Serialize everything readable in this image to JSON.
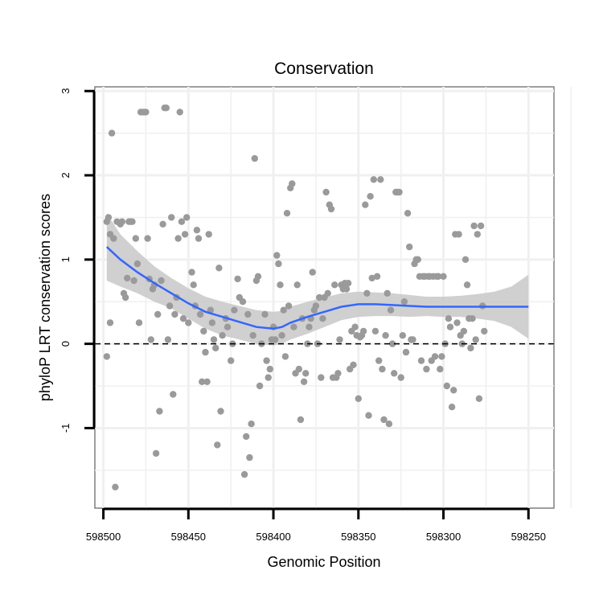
{
  "chart_data": {
    "type": "scatter",
    "title": "Conservation",
    "xlabel": "Genomic Position",
    "ylabel": "phyloP LRT conservation scores",
    "x_reversed": true,
    "xlim": [
      598505,
      598235
    ],
    "ylim": [
      -1.95,
      3.05
    ],
    "grid": true,
    "x_ticks": [
      598500,
      598450,
      598400,
      598350,
      598300,
      598250
    ],
    "x_tick_labels": [
      "598500",
      "598450",
      "598400",
      "598350",
      "598300",
      "598250"
    ],
    "y_ticks": [
      3,
      2,
      1,
      0,
      -1
    ],
    "y_tick_labels": [
      "3",
      "2",
      "1",
      "0",
      "-1"
    ],
    "reference_line": {
      "y": 0,
      "style": "dashed",
      "color": "#000000"
    },
    "colors": {
      "points": "#9a9a9a",
      "smooth": "#3366ff",
      "band": "#c8c8c8",
      "grid": "#f0f0f0",
      "border": "#7f7f7f"
    },
    "points": [
      [
        598498,
        1.45
      ],
      [
        598497,
        1.5
      ],
      [
        598496,
        1.3
      ],
      [
        598495,
        2.5
      ],
      [
        598494,
        1.25
      ],
      [
        598498,
        -0.15
      ],
      [
        598496,
        0.25
      ],
      [
        598493,
        -1.7
      ],
      [
        598492,
        1.45
      ],
      [
        598490,
        1.42
      ],
      [
        598489,
        1.45
      ],
      [
        598488,
        0.6
      ],
      [
        598487,
        0.55
      ],
      [
        598486,
        0.78
      ],
      [
        598485,
        1.45
      ],
      [
        598484,
        1.45
      ],
      [
        598483,
        1.45
      ],
      [
        598482,
        0.75
      ],
      [
        598481,
        1.25
      ],
      [
        598480,
        0.95
      ],
      [
        598479,
        0.25
      ],
      [
        598478,
        2.75
      ],
      [
        598477,
        2.75
      ],
      [
        598476,
        2.75
      ],
      [
        598475,
        2.75
      ],
      [
        598474,
        1.25
      ],
      [
        598473,
        0.77
      ],
      [
        598472,
        0.05
      ],
      [
        598471,
        0.65
      ],
      [
        598470,
        0.7
      ],
      [
        598469,
        -1.3
      ],
      [
        598468,
        0.35
      ],
      [
        598467,
        -0.8
      ],
      [
        598466,
        0.75
      ],
      [
        598465,
        1.42
      ],
      [
        598464,
        2.8
      ],
      [
        598463,
        2.8
      ],
      [
        598462,
        0.05
      ],
      [
        598461,
        0.45
      ],
      [
        598460,
        1.5
      ],
      [
        598459,
        -0.6
      ],
      [
        598458,
        0.35
      ],
      [
        598457,
        0.55
      ],
      [
        598456,
        1.25
      ],
      [
        598455,
        2.75
      ],
      [
        598454,
        1.45
      ],
      [
        598453,
        0.3
      ],
      [
        598452,
        1.3
      ],
      [
        598451,
        1.5
      ],
      [
        598450,
        0.25
      ],
      [
        598448,
        0.85
      ],
      [
        598447,
        0.7
      ],
      [
        598446,
        0.45
      ],
      [
        598445,
        1.35
      ],
      [
        598444,
        1.25
      ],
      [
        598443,
        0.35
      ],
      [
        598442,
        -0.45
      ],
      [
        598441,
        0.15
      ],
      [
        598440,
        -0.1
      ],
      [
        598439,
        -0.45
      ],
      [
        598438,
        1.3
      ],
      [
        598437,
        0.4
      ],
      [
        598436,
        0.25
      ],
      [
        598435,
        0.05
      ],
      [
        598434,
        -0.05
      ],
      [
        598433,
        -1.2
      ],
      [
        598432,
        0.9
      ],
      [
        598431,
        -0.8
      ],
      [
        598430,
        0.1
      ],
      [
        598428,
        0.3
      ],
      [
        598427,
        0.2
      ],
      [
        598425,
        -0.2
      ],
      [
        598424,
        0.0
      ],
      [
        598423,
        0.4
      ],
      [
        598421,
        0.77
      ],
      [
        598420,
        0.55
      ],
      [
        598418,
        0.5
      ],
      [
        598417,
        -1.55
      ],
      [
        598416,
        -1.1
      ],
      [
        598415,
        0.35
      ],
      [
        598414,
        -1.35
      ],
      [
        598413,
        -0.95
      ],
      [
        598412,
        0.1
      ],
      [
        598411,
        2.2
      ],
      [
        598410,
        0.75
      ],
      [
        598409,
        0.8
      ],
      [
        598408,
        -0.5
      ],
      [
        598407,
        0.0
      ],
      [
        598405,
        0.35
      ],
      [
        598404,
        -0.2
      ],
      [
        598403,
        -0.4
      ],
      [
        598402,
        -0.3
      ],
      [
        598401,
        0.05
      ],
      [
        598400,
        0.2
      ],
      [
        598399,
        0.05
      ],
      [
        598398,
        1.05
      ],
      [
        598397,
        0.95
      ],
      [
        598396,
        0.7
      ],
      [
        598395,
        0.1
      ],
      [
        598394,
        0.4
      ],
      [
        598393,
        -0.15
      ],
      [
        598392,
        1.55
      ],
      [
        598391,
        0.45
      ],
      [
        598390,
        1.85
      ],
      [
        598389,
        1.9
      ],
      [
        598388,
        0.2
      ],
      [
        598387,
        -0.35
      ],
      [
        598386,
        0.7
      ],
      [
        598385,
        -0.3
      ],
      [
        598384,
        -0.9
      ],
      [
        598383,
        0.3
      ],
      [
        598382,
        -0.45
      ],
      [
        598381,
        -0.35
      ],
      [
        598380,
        0.0
      ],
      [
        598379,
        0.2
      ],
      [
        598378,
        0.3
      ],
      [
        598377,
        0.85
      ],
      [
        598376,
        0.4
      ],
      [
        598375,
        0.45
      ],
      [
        598374,
        0.0
      ],
      [
        598373,
        0.55
      ],
      [
        598372,
        -0.4
      ],
      [
        598371,
        0.3
      ],
      [
        598370,
        0.55
      ],
      [
        598369,
        1.8
      ],
      [
        598368,
        0.6
      ],
      [
        598367,
        1.65
      ],
      [
        598366,
        1.6
      ],
      [
        598365,
        -0.4
      ],
      [
        598364,
        0.7
      ],
      [
        598363,
        -0.4
      ],
      [
        598362,
        -0.35
      ],
      [
        598361,
        0.05
      ],
      [
        598360,
        0.7
      ],
      [
        598359,
        0.65
      ],
      [
        598358,
        0.72
      ],
      [
        598357,
        0.65
      ],
      [
        598356,
        0.72
      ],
      [
        598355,
        -0.3
      ],
      [
        598354,
        0.15
      ],
      [
        598353,
        -0.25
      ],
      [
        598352,
        0.2
      ],
      [
        598351,
        0.1
      ],
      [
        598350,
        -0.65
      ],
      [
        598349,
        0.08
      ],
      [
        598348,
        0.1
      ],
      [
        598347,
        0.15
      ],
      [
        598346,
        1.65
      ],
      [
        598345,
        0.6
      ],
      [
        598344,
        -0.85
      ],
      [
        598343,
        1.75
      ],
      [
        598342,
        0.78
      ],
      [
        598341,
        1.95
      ],
      [
        598340,
        0.15
      ],
      [
        598339,
        0.8
      ],
      [
        598338,
        -0.2
      ],
      [
        598337,
        1.95
      ],
      [
        598336,
        -0.3
      ],
      [
        598335,
        -0.9
      ],
      [
        598334,
        0.1
      ],
      [
        598333,
        0.6
      ],
      [
        598332,
        -0.95
      ],
      [
        598331,
        0.4
      ],
      [
        598330,
        0.0
      ],
      [
        598329,
        -0.35
      ],
      [
        598328,
        1.8
      ],
      [
        598327,
        1.8
      ],
      [
        598326,
        1.8
      ],
      [
        598325,
        -0.4
      ],
      [
        598324,
        0.1
      ],
      [
        598323,
        0.5
      ],
      [
        598322,
        -0.1
      ],
      [
        598321,
        1.55
      ],
      [
        598320,
        1.15
      ],
      [
        598319,
        0.05
      ],
      [
        598318,
        0.05
      ],
      [
        598317,
        0.95
      ],
      [
        598316,
        1.0
      ],
      [
        598315,
        1.0
      ],
      [
        598314,
        0.8
      ],
      [
        598313,
        -0.2
      ],
      [
        598312,
        0.8
      ],
      [
        598311,
        0.8
      ],
      [
        598310,
        -0.3
      ],
      [
        598309,
        0.8
      ],
      [
        598308,
        0.8
      ],
      [
        598307,
        -0.2
      ],
      [
        598306,
        0.8
      ],
      [
        598305,
        -0.15
      ],
      [
        598304,
        0.8
      ],
      [
        598303,
        0.8
      ],
      [
        598302,
        -0.3
      ],
      [
        598301,
        -0.15
      ],
      [
        598300,
        0.8
      ],
      [
        598299,
        0.0
      ],
      [
        598298,
        -0.5
      ],
      [
        598297,
        0.3
      ],
      [
        598296,
        0.2
      ],
      [
        598295,
        -0.75
      ],
      [
        598294,
        -0.55
      ],
      [
        598293,
        1.3
      ],
      [
        598292,
        0.25
      ],
      [
        598291,
        1.3
      ],
      [
        598290,
        0.1
      ],
      [
        598289,
        0.0
      ],
      [
        598288,
        0.15
      ],
      [
        598287,
        1.0
      ],
      [
        598286,
        0.7
      ],
      [
        598285,
        0.3
      ],
      [
        598284,
        -0.05
      ],
      [
        598283,
        0.3
      ],
      [
        598282,
        1.4
      ],
      [
        598281,
        0.05
      ],
      [
        598280,
        1.3
      ],
      [
        598279,
        -0.65
      ],
      [
        598278,
        1.4
      ],
      [
        598277,
        0.45
      ],
      [
        598276,
        0.15
      ]
    ],
    "smooth_line": {
      "x": [
        598498,
        598490,
        598480,
        598470,
        598460,
        598450,
        598440,
        598430,
        598420,
        598410,
        598400,
        598395,
        598390,
        598380,
        598370,
        598360,
        598350,
        598340,
        598330,
        598320,
        598310,
        598300,
        598290,
        598280,
        598270,
        598260,
        598250
      ],
      "y": [
        1.15,
        1.0,
        0.85,
        0.72,
        0.6,
        0.48,
        0.38,
        0.32,
        0.26,
        0.2,
        0.18,
        0.2,
        0.25,
        0.32,
        0.38,
        0.44,
        0.47,
        0.47,
        0.46,
        0.45,
        0.44,
        0.44,
        0.44,
        0.44,
        0.44,
        0.44,
        0.44
      ],
      "ymin": [
        0.75,
        0.68,
        0.6,
        0.5,
        0.42,
        0.3,
        0.18,
        0.1,
        0.05,
        0.0,
        -0.02,
        0.0,
        0.05,
        0.12,
        0.2,
        0.28,
        0.32,
        0.33,
        0.33,
        0.32,
        0.33,
        0.32,
        0.32,
        0.3,
        0.27,
        0.2,
        0.06
      ],
      "ymax": [
        1.55,
        1.3,
        1.1,
        0.92,
        0.78,
        0.66,
        0.56,
        0.5,
        0.45,
        0.4,
        0.38,
        0.39,
        0.44,
        0.5,
        0.55,
        0.6,
        0.62,
        0.61,
        0.6,
        0.58,
        0.56,
        0.56,
        0.57,
        0.59,
        0.62,
        0.68,
        0.82
      ]
    }
  }
}
